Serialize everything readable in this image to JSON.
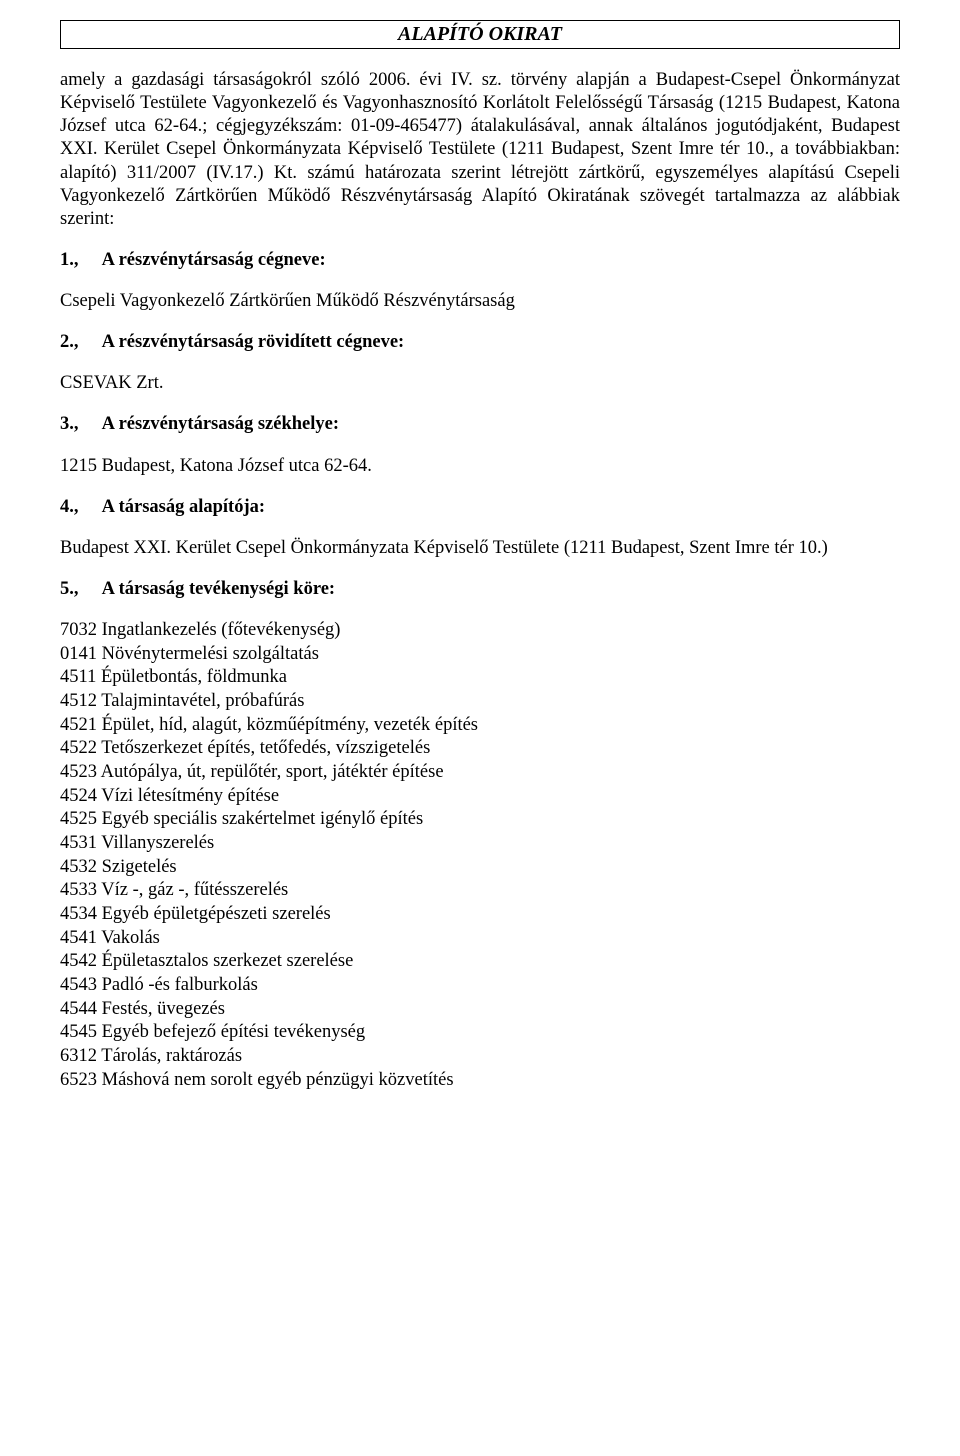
{
  "title": "ALAPÍTÓ OKIRAT",
  "intro": "amely a gazdasági társaságokról szóló 2006. évi IV. sz. törvény alapján a Budapest-Csepel Önkormányzat Képviselő Testülete Vagyonkezelő és Vagyonhasznosító Korlátolt Felelősségű Társaság (1215 Budapest, Katona József utca 62-64.; cégjegyzékszám: 01-09-465477) átalakulásával, annak általános jogutódjaként, Budapest XXI. Kerület Csepel Önkormányzata Képviselő Testülete (1211 Budapest, Szent Imre tér 10., a továbbiakban: alapító) 311/2007 (IV.17.) Kt. számú határozata szerint létrejött zártkörű, egyszemélyes alapítású Csepeli Vagyonkezelő Zártkörűen Működő Részvénytársaság Alapító Okiratának szövegét tartalmazza az alábbiak szerint:",
  "sections": {
    "s1": {
      "num": "1.,",
      "label": "A részvénytársaság cégneve:",
      "body": "Csepeli Vagyonkezelő Zártkörűen Működő Részvénytársaság"
    },
    "s2": {
      "num": "2.,",
      "label": "A részvénytársaság rövidített cégneve:",
      "body": "CSEVAK Zrt."
    },
    "s3": {
      "num": "3.,",
      "label": "A részvénytársaság székhelye:",
      "body": "1215 Budapest, Katona József utca 62-64."
    },
    "s4": {
      "num": "4.,",
      "label": "A társaság alapítója:",
      "body": "Budapest XXI. Kerület Csepel Önkormányzata Képviselő Testülete (1211 Budapest, Szent Imre tér 10.)"
    },
    "s5": {
      "num": "5.,",
      "label": "A társaság tevékenységi köre:"
    }
  },
  "activities": [
    "7032 Ingatlankezelés (főtevékenység)",
    "0141 Növénytermelési szolgáltatás",
    "4511 Épületbontás, földmunka",
    "4512 Talajmintavétel, próbafúrás",
    "4521 Épület, híd, alagút, közműépítmény, vezeték építés",
    "4522 Tetőszerkezet építés, tetőfedés, vízszigetelés",
    "4523 Autópálya, út, repülőtér, sport, játéktér építése",
    "4524 Vízi létesítmény építése",
    "4525 Egyéb speciális szakértelmet igénylő építés",
    "4531 Villanyszerelés",
    "4532 Szigetelés",
    "4533 Víz -, gáz -, fűtésszerelés",
    "4534   Egyéb épületgépészeti szerelés",
    "4541 Vakolás",
    "4542 Épületasztalos szerkezet szerelése",
    "4543 Padló -és falburkolás",
    "4544 Festés, üvegezés",
    "4545 Egyéb befejező építési tevékenység",
    "6312 Tárolás, raktározás",
    "6523 Máshová nem sorolt egyéb pénzügyi közvetítés"
  ]
}
